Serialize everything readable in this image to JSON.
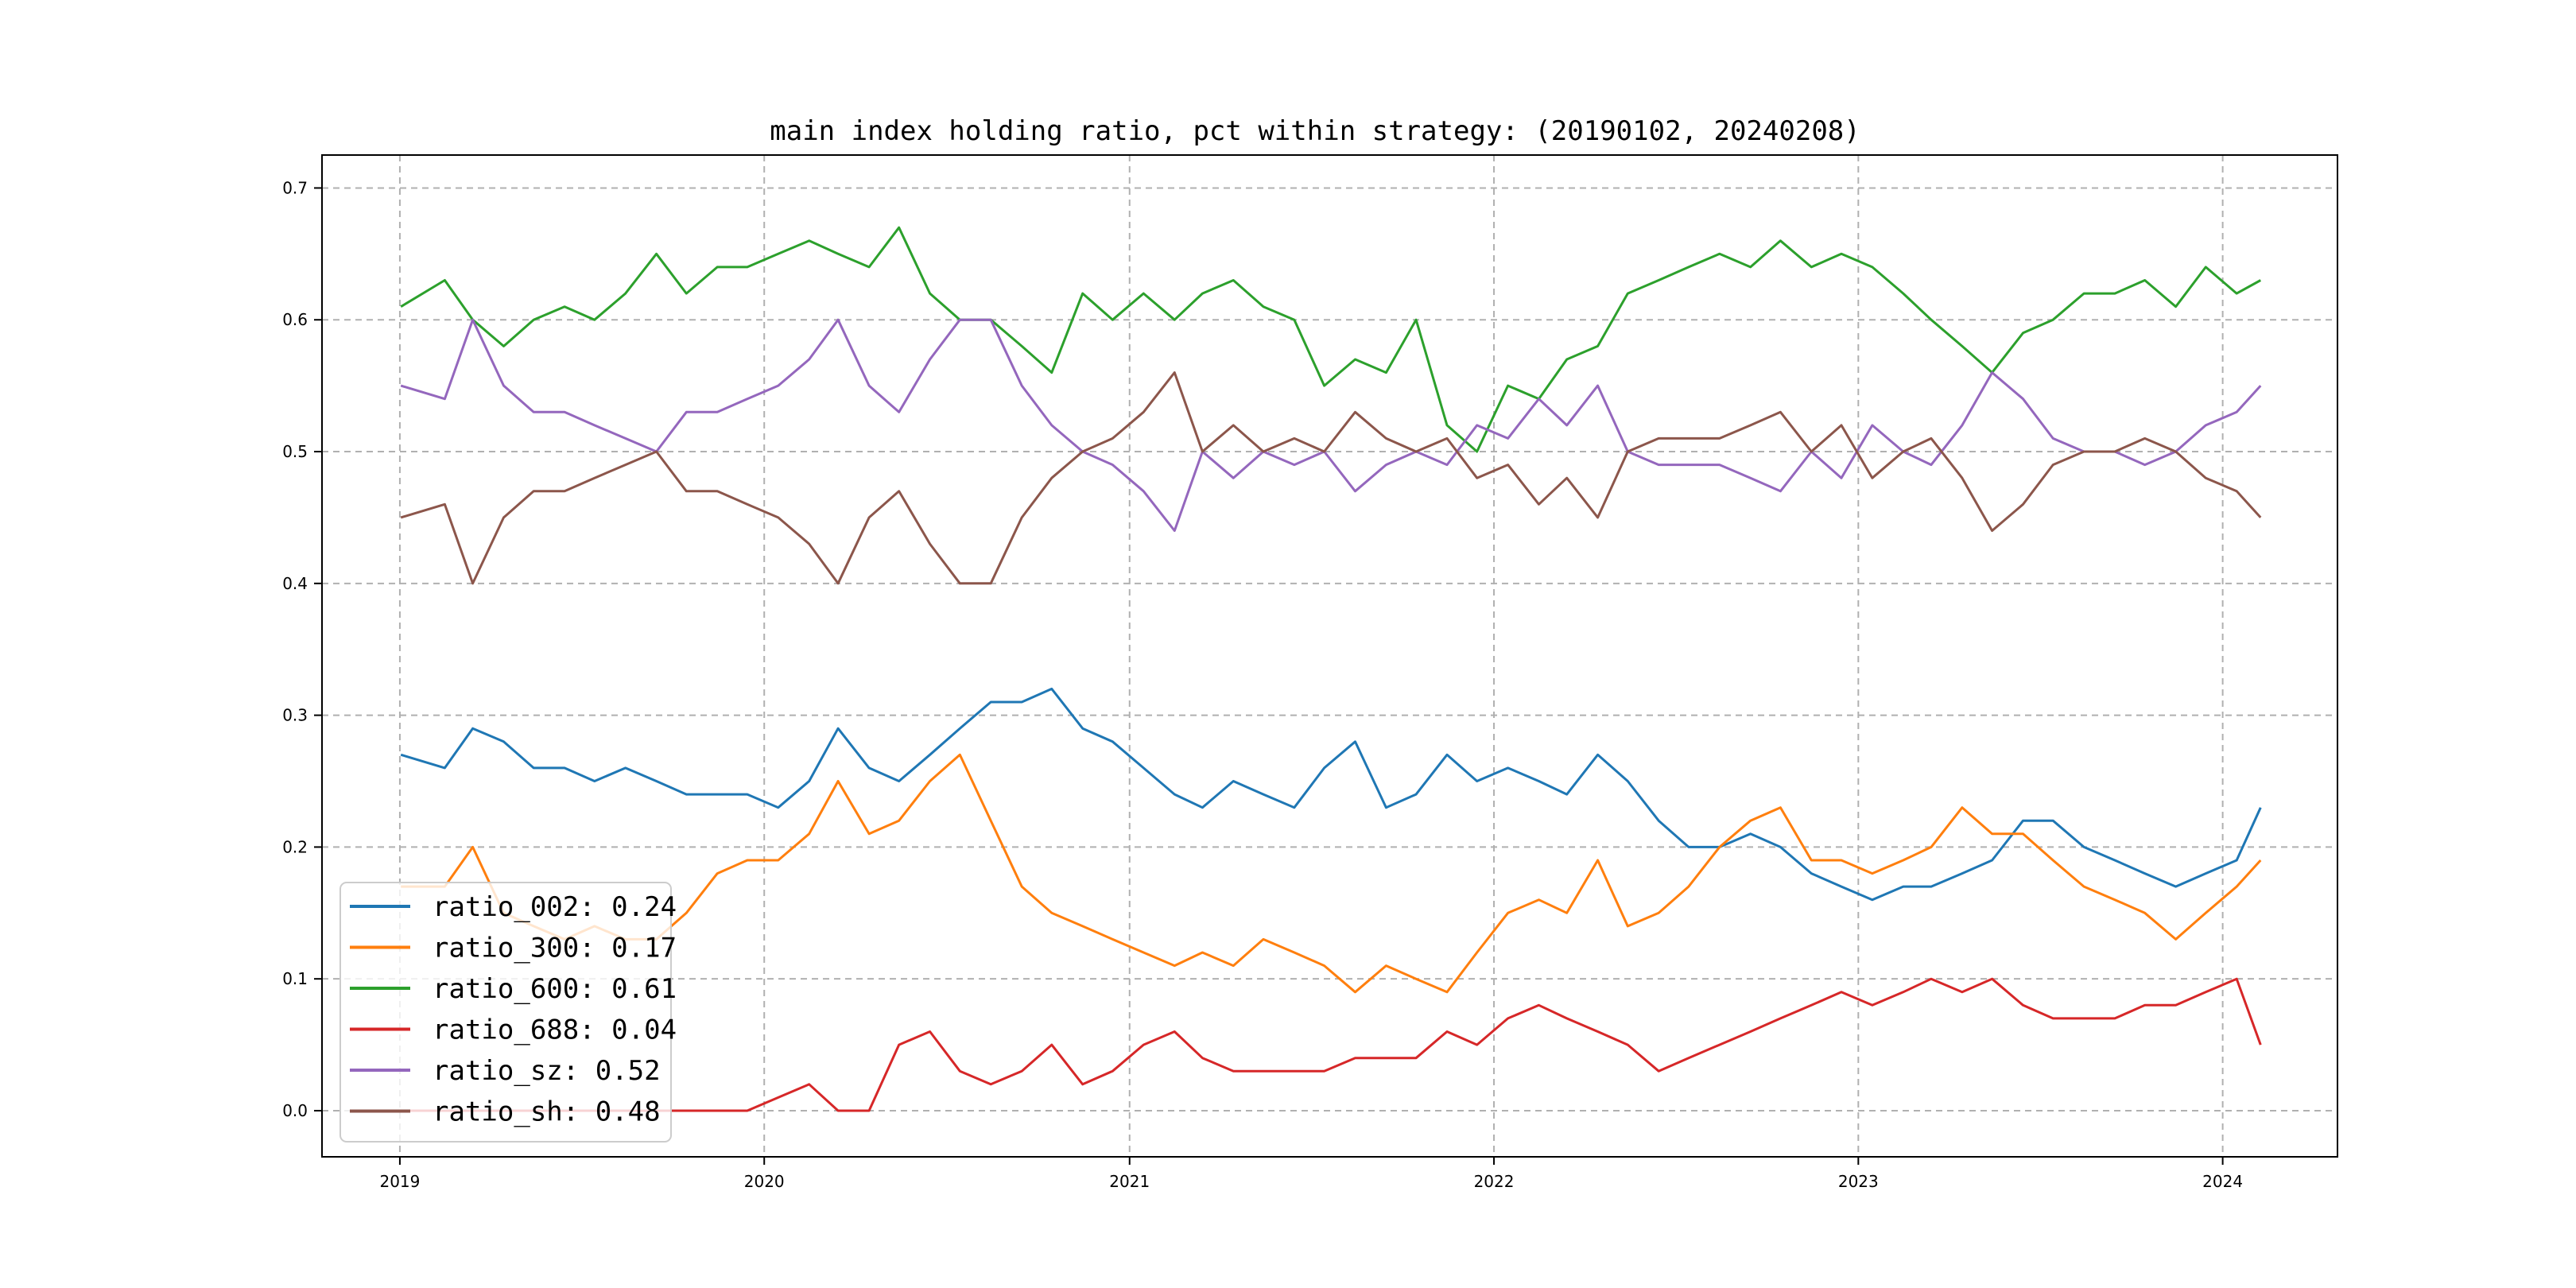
{
  "chart_data": {
    "type": "line",
    "title": "main index holding ratio, pct within strategy: (20190102, 20240208)",
    "xlabel": "",
    "ylabel": "",
    "xlim": [
      "2018-10-15",
      "2024-04-25"
    ],
    "ylim": [
      -0.035,
      0.725
    ],
    "grid": true,
    "legend_position": "lower-left",
    "x_ticks": [
      "2019",
      "2020",
      "2021",
      "2022",
      "2023",
      "2024"
    ],
    "y_ticks": [
      "0.0",
      "0.1",
      "0.2",
      "0.3",
      "0.4",
      "0.5",
      "0.6",
      "0.7"
    ],
    "x": [
      "2019-01-02",
      "2019-02-15",
      "2019-03-15",
      "2019-04-15",
      "2019-05-15",
      "2019-06-15",
      "2019-07-15",
      "2019-08-15",
      "2019-09-15",
      "2019-10-15",
      "2019-11-15",
      "2019-12-15",
      "2020-01-15",
      "2020-02-15",
      "2020-03-15",
      "2020-04-15",
      "2020-05-15",
      "2020-06-15",
      "2020-07-15",
      "2020-08-15",
      "2020-09-15",
      "2020-10-15",
      "2020-11-15",
      "2020-12-15",
      "2021-01-15",
      "2021-02-15",
      "2021-03-15",
      "2021-04-15",
      "2021-05-15",
      "2021-06-15",
      "2021-07-15",
      "2021-08-15",
      "2021-09-15",
      "2021-10-15",
      "2021-11-15",
      "2021-12-15",
      "2022-01-15",
      "2022-02-15",
      "2022-03-15",
      "2022-04-15",
      "2022-05-15",
      "2022-06-15",
      "2022-07-15",
      "2022-08-15",
      "2022-09-15",
      "2022-10-15",
      "2022-11-15",
      "2022-12-15",
      "2023-01-15",
      "2023-02-15",
      "2023-03-15",
      "2023-04-15",
      "2023-05-15",
      "2023-06-15",
      "2023-07-15",
      "2023-08-15",
      "2023-09-15",
      "2023-10-15",
      "2023-11-15",
      "2023-12-15",
      "2024-01-15",
      "2024-02-08"
    ],
    "series": [
      {
        "name": "ratio_002: 0.24",
        "color": "#1f77b4",
        "values": [
          0.27,
          0.26,
          0.29,
          0.28,
          0.26,
          0.26,
          0.25,
          0.26,
          0.25,
          0.24,
          0.24,
          0.24,
          0.23,
          0.25,
          0.29,
          0.26,
          0.25,
          0.27,
          0.29,
          0.31,
          0.31,
          0.32,
          0.29,
          0.28,
          0.26,
          0.24,
          0.23,
          0.25,
          0.24,
          0.23,
          0.26,
          0.28,
          0.23,
          0.24,
          0.27,
          0.25,
          0.26,
          0.25,
          0.24,
          0.27,
          0.25,
          0.22,
          0.2,
          0.2,
          0.21,
          0.2,
          0.18,
          0.17,
          0.16,
          0.17,
          0.17,
          0.18,
          0.19,
          0.22,
          0.22,
          0.2,
          0.19,
          0.18,
          0.17,
          0.18,
          0.19,
          0.23
        ]
      },
      {
        "name": "ratio_300: 0.17",
        "color": "#ff7f0e",
        "values": [
          0.17,
          0.17,
          0.2,
          0.15,
          0.14,
          0.13,
          0.14,
          0.13,
          0.13,
          0.15,
          0.18,
          0.19,
          0.19,
          0.21,
          0.25,
          0.21,
          0.22,
          0.25,
          0.27,
          0.22,
          0.17,
          0.15,
          0.14,
          0.13,
          0.12,
          0.11,
          0.12,
          0.11,
          0.13,
          0.12,
          0.11,
          0.09,
          0.11,
          0.1,
          0.09,
          0.12,
          0.15,
          0.16,
          0.15,
          0.19,
          0.14,
          0.15,
          0.17,
          0.2,
          0.22,
          0.23,
          0.19,
          0.19,
          0.18,
          0.19,
          0.2,
          0.23,
          0.21,
          0.21,
          0.19,
          0.17,
          0.16,
          0.15,
          0.13,
          0.15,
          0.17,
          0.19
        ]
      },
      {
        "name": "ratio_600: 0.61",
        "color": "#2ca02c",
        "values": [
          0.61,
          0.63,
          0.6,
          0.58,
          0.6,
          0.61,
          0.6,
          0.62,
          0.65,
          0.62,
          0.64,
          0.64,
          0.65,
          0.66,
          0.65,
          0.64,
          0.67,
          0.62,
          0.6,
          0.6,
          0.58,
          0.56,
          0.62,
          0.6,
          0.62,
          0.6,
          0.62,
          0.63,
          0.61,
          0.6,
          0.55,
          0.57,
          0.56,
          0.6,
          0.52,
          0.5,
          0.55,
          0.54,
          0.57,
          0.58,
          0.62,
          0.63,
          0.64,
          0.65,
          0.64,
          0.66,
          0.64,
          0.65,
          0.64,
          0.62,
          0.6,
          0.58,
          0.56,
          0.59,
          0.6,
          0.62,
          0.62,
          0.63,
          0.61,
          0.64,
          0.62,
          0.63
        ]
      },
      {
        "name": "ratio_688: 0.04",
        "color": "#d62728",
        "values": [
          0.0,
          0.0,
          0.0,
          0.0,
          0.0,
          0.0,
          0.0,
          0.0,
          0.0,
          0.0,
          0.0,
          0.0,
          0.01,
          0.02,
          0.0,
          0.0,
          0.05,
          0.06,
          0.03,
          0.02,
          0.03,
          0.05,
          0.02,
          0.03,
          0.05,
          0.06,
          0.04,
          0.03,
          0.03,
          0.03,
          0.03,
          0.04,
          0.04,
          0.04,
          0.06,
          0.05,
          0.07,
          0.08,
          0.07,
          0.06,
          0.05,
          0.03,
          0.04,
          0.05,
          0.06,
          0.07,
          0.08,
          0.09,
          0.08,
          0.09,
          0.1,
          0.09,
          0.1,
          0.08,
          0.07,
          0.07,
          0.07,
          0.08,
          0.08,
          0.09,
          0.1,
          0.05
        ]
      },
      {
        "name": "ratio_sz: 0.52",
        "color": "#9467bd",
        "values": [
          0.55,
          0.54,
          0.6,
          0.55,
          0.53,
          0.53,
          0.52,
          0.51,
          0.5,
          0.53,
          0.53,
          0.54,
          0.55,
          0.57,
          0.6,
          0.55,
          0.53,
          0.57,
          0.6,
          0.6,
          0.55,
          0.52,
          0.5,
          0.49,
          0.47,
          0.44,
          0.5,
          0.48,
          0.5,
          0.49,
          0.5,
          0.47,
          0.49,
          0.5,
          0.49,
          0.52,
          0.51,
          0.54,
          0.52,
          0.55,
          0.5,
          0.49,
          0.49,
          0.49,
          0.48,
          0.47,
          0.5,
          0.48,
          0.52,
          0.5,
          0.49,
          0.52,
          0.56,
          0.54,
          0.51,
          0.5,
          0.5,
          0.49,
          0.5,
          0.52,
          0.53,
          0.55
        ]
      },
      {
        "name": "ratio_sh: 0.48",
        "color": "#8c564b",
        "values": [
          0.45,
          0.46,
          0.4,
          0.45,
          0.47,
          0.47,
          0.48,
          0.49,
          0.5,
          0.47,
          0.47,
          0.46,
          0.45,
          0.43,
          0.4,
          0.45,
          0.47,
          0.43,
          0.4,
          0.4,
          0.45,
          0.48,
          0.5,
          0.51,
          0.53,
          0.56,
          0.5,
          0.52,
          0.5,
          0.51,
          0.5,
          0.53,
          0.51,
          0.5,
          0.51,
          0.48,
          0.49,
          0.46,
          0.48,
          0.45,
          0.5,
          0.51,
          0.51,
          0.51,
          0.52,
          0.53,
          0.5,
          0.52,
          0.48,
          0.5,
          0.51,
          0.48,
          0.44,
          0.46,
          0.49,
          0.5,
          0.5,
          0.51,
          0.5,
          0.48,
          0.47,
          0.45
        ]
      }
    ]
  }
}
